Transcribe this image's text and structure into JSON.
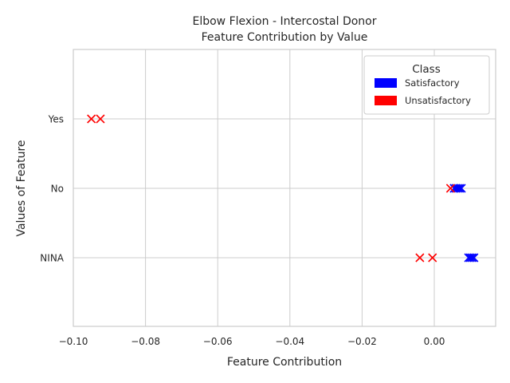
{
  "chart_data": {
    "type": "scatter",
    "title_lines": [
      "Elbow Flexion - Intercostal Donor",
      "Feature Contribution by Value"
    ],
    "xlabel": "Feature Contribution",
    "ylabel": "Values of Feature",
    "xlim": [
      -0.1,
      0.017
    ],
    "xticks": [
      -0.1,
      -0.08,
      -0.06,
      -0.04,
      -0.02,
      0.0
    ],
    "xtick_labels": [
      "−0.10",
      "−0.08",
      "−0.06",
      "−0.04",
      "−0.02",
      "0.00"
    ],
    "categories": [
      "NINA",
      "No",
      "Yes"
    ],
    "grid": true,
    "marker": "x",
    "legend": {
      "title": "Class",
      "placement": "top-right",
      "entries": [
        {
          "label": "Satisfactory",
          "color": "#0000ff"
        },
        {
          "label": "Unsatisfactory",
          "color": "#ff0000"
        }
      ]
    },
    "series": [
      {
        "name": "Satisfactory",
        "color": "#0000ff",
        "points": [
          {
            "x": 0.0055,
            "y": "No"
          },
          {
            "x": 0.006,
            "y": "No"
          },
          {
            "x": 0.0065,
            "y": "No"
          },
          {
            "x": 0.007,
            "y": "No"
          },
          {
            "x": 0.0075,
            "y": "No"
          },
          {
            "x": 0.0095,
            "y": "NINA"
          },
          {
            "x": 0.01,
            "y": "NINA"
          },
          {
            "x": 0.0105,
            "y": "NINA"
          },
          {
            "x": 0.011,
            "y": "NINA"
          }
        ]
      },
      {
        "name": "Unsatisfactory",
        "color": "#ff0000",
        "points": [
          {
            "x": -0.095,
            "y": "Yes"
          },
          {
            "x": -0.0925,
            "y": "Yes"
          },
          {
            "x": 0.0045,
            "y": "No"
          },
          {
            "x": -0.004,
            "y": "NINA"
          },
          {
            "x": -0.0005,
            "y": "NINA"
          }
        ]
      }
    ]
  }
}
